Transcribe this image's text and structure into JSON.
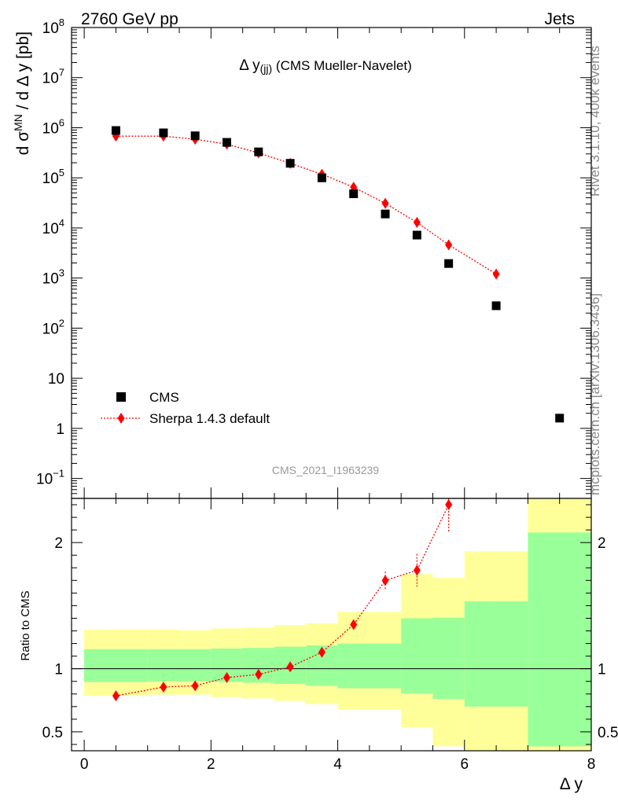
{
  "header": {
    "left": "2760 GeV pp",
    "right": "Jets"
  },
  "side": {
    "rivet": "Rivet 3.1.10,  400k events",
    "mcplots": "mcplots.cern.ch [arXiv:1306.3436]"
  },
  "colors": {
    "data": "#000000",
    "mc": "#ff0000",
    "band_inner": "#99ff99",
    "band_outer": "#ffff99"
  },
  "chart_data": [
    {
      "type": "scatter",
      "title": "Δ y(jj) (CMS Mueller-Navelet)",
      "title_main": "Δ y",
      "title_sub": "(jj)",
      "title_rest": "(CMS Mueller-Navelet)",
      "ylabel": "d σ^MN / d Δ y [pb]",
      "ylabel_parts": {
        "pre": "d σ",
        "sup": "MN",
        "post": " / d Δ y [pb]"
      },
      "yscale": "log",
      "ylim": [
        0.04,
        100000000
      ],
      "xlim": [
        -0.2,
        8.0
      ],
      "y_ticks": [
        {
          "v": 0.1,
          "base": "10",
          "exp": "−1"
        },
        {
          "v": 1,
          "base": "1",
          "exp": ""
        },
        {
          "v": 10,
          "base": "10",
          "exp": ""
        },
        {
          "v": 100,
          "base": "10",
          "exp": "2"
        },
        {
          "v": 1000,
          "base": "10",
          "exp": "3"
        },
        {
          "v": 10000,
          "base": "10",
          "exp": "4"
        },
        {
          "v": 100000,
          "base": "10",
          "exp": "5"
        },
        {
          "v": 1000000,
          "base": "10",
          "exp": "6"
        },
        {
          "v": 10000000,
          "base": "10",
          "exp": "7"
        },
        {
          "v": 100000000,
          "base": "10",
          "exp": "8"
        }
      ],
      "watermark": "CMS_2021_I1963239",
      "legend_position": "bottom-left",
      "series": [
        {
          "name": "CMS",
          "marker": "square",
          "x": [
            0.5,
            1.25,
            1.75,
            2.25,
            2.75,
            3.25,
            3.75,
            4.25,
            4.75,
            5.25,
            5.75,
            6.5,
            7.5
          ],
          "y": [
            880000,
            790000,
            690000,
            510000,
            330000,
            195000,
            100000,
            48000,
            19000,
            7200,
            1950,
            280,
            1.6
          ]
        },
        {
          "name": "Sherpa 1.4.3 default",
          "marker": "diamond",
          "line": "dotted",
          "x": [
            0.5,
            1.25,
            1.75,
            2.25,
            2.75,
            3.25,
            3.75,
            4.25,
            4.75,
            5.25,
            5.75,
            6.5
          ],
          "y": [
            680000,
            680000,
            590000,
            470000,
            315000,
            195000,
            118000,
            65000,
            31000,
            12900,
            4600,
            1200
          ]
        }
      ]
    },
    {
      "type": "scatter",
      "ylabel": "Ratio to CMS",
      "xlabel": "Δ y",
      "xlim": [
        -0.2,
        8.0
      ],
      "ylim": [
        0.35,
        2.35
      ],
      "x_ticks": [
        0,
        2,
        4,
        6,
        8
      ],
      "y_ticks": [
        0.5,
        1,
        2
      ],
      "bands": [
        {
          "x0": 0.0,
          "x1": 1.0,
          "inner": [
            0.895,
            1.155
          ],
          "outer": [
            0.785,
            1.31
          ]
        },
        {
          "x0": 1.0,
          "x1": 1.5,
          "inner": [
            0.9,
            1.155
          ],
          "outer": [
            0.795,
            1.31
          ]
        },
        {
          "x0": 1.5,
          "x1": 2.0,
          "inner": [
            0.9,
            1.155
          ],
          "outer": [
            0.795,
            1.305
          ]
        },
        {
          "x0": 2.0,
          "x1": 2.5,
          "inner": [
            0.895,
            1.16
          ],
          "outer": [
            0.775,
            1.32
          ]
        },
        {
          "x0": 2.5,
          "x1": 3.0,
          "inner": [
            0.89,
            1.165
          ],
          "outer": [
            0.765,
            1.325
          ]
        },
        {
          "x0": 3.0,
          "x1": 3.5,
          "inner": [
            0.88,
            1.175
          ],
          "outer": [
            0.745,
            1.345
          ]
        },
        {
          "x0": 3.5,
          "x1": 4.0,
          "inner": [
            0.865,
            1.185
          ],
          "outer": [
            0.72,
            1.36
          ]
        },
        {
          "x0": 4.0,
          "x1": 5.0,
          "inner": [
            0.845,
            1.2
          ],
          "outer": [
            0.675,
            1.45
          ]
        },
        {
          "x0": 5.0,
          "x1": 5.5,
          "inner": [
            0.805,
            1.4
          ],
          "outer": [
            0.535,
            1.75
          ]
        },
        {
          "x0": 5.5,
          "x1": 6.0,
          "inner": [
            0.76,
            1.405
          ],
          "outer": [
            0.385,
            1.72
          ]
        },
        {
          "x0": 6.0,
          "x1": 7.0,
          "inner": [
            0.7,
            1.535
          ],
          "outer": [
            0.35,
            1.93
          ]
        },
        {
          "x0": 7.0,
          "x1": 8.0,
          "inner": [
            0.385,
            2.08
          ],
          "outer": [
            0.35,
            2.35
          ]
        }
      ],
      "ratio": {
        "x": [
          0.5,
          1.25,
          1.75,
          2.25,
          2.75,
          3.25,
          3.75,
          4.25,
          4.75,
          5.25,
          5.75
        ],
        "y": [
          0.785,
          0.855,
          0.865,
          0.93,
          0.955,
          1.015,
          1.13,
          1.35,
          1.7,
          1.78,
          2.3
        ],
        "err": [
          0.0,
          0.0,
          0.0,
          0.0,
          0.0,
          0.0,
          0.0,
          0.03,
          0.07,
          0.13,
          0.22
        ]
      }
    }
  ]
}
